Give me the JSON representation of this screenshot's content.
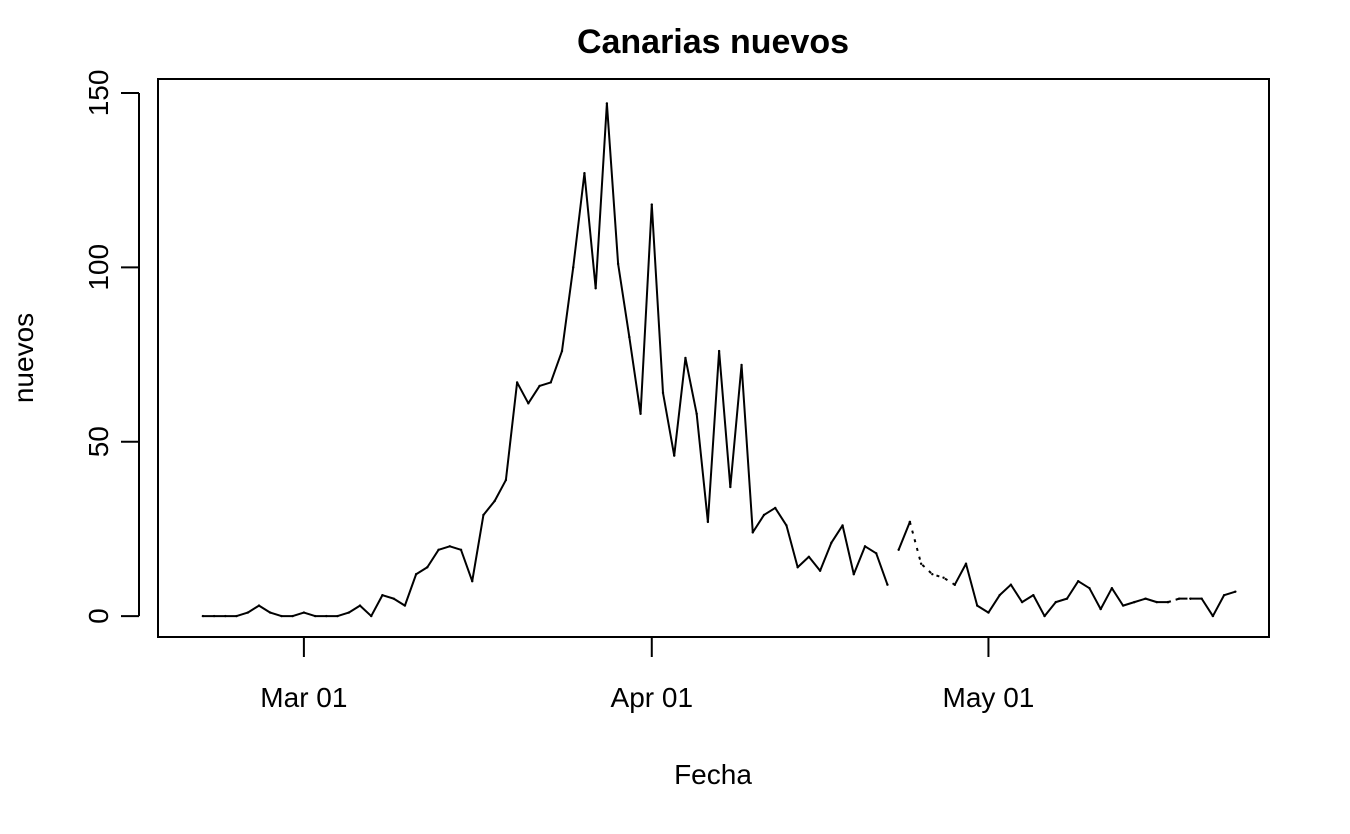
{
  "chart_data": {
    "type": "line",
    "title": "Canarias nuevos",
    "xlabel": "Fecha",
    "ylabel": "nuevos",
    "ylim": [
      -6,
      154
    ],
    "xlim": [
      "2020-02-17",
      "2020-05-26"
    ],
    "yticks": [
      0,
      50,
      100,
      150
    ],
    "xticks": [
      {
        "date": "2020-03-01",
        "label": "Mar 01"
      },
      {
        "date": "2020-04-01",
        "label": "Apr 01"
      },
      {
        "date": "2020-05-01",
        "label": "May 01"
      }
    ],
    "grid": false,
    "series": [
      {
        "style": "solid",
        "x": [
          "2020-02-21",
          "2020-02-22",
          "2020-02-23",
          "2020-02-24",
          "2020-02-25",
          "2020-02-26",
          "2020-02-27",
          "2020-02-28",
          "2020-02-29",
          "2020-03-01",
          "2020-03-02",
          "2020-03-03",
          "2020-03-04",
          "2020-03-05",
          "2020-03-06",
          "2020-03-07",
          "2020-03-08",
          "2020-03-09",
          "2020-03-10",
          "2020-03-11",
          "2020-03-12",
          "2020-03-13",
          "2020-03-14",
          "2020-03-15",
          "2020-03-16",
          "2020-03-17",
          "2020-03-18",
          "2020-03-19",
          "2020-03-20",
          "2020-03-21",
          "2020-03-22",
          "2020-03-23",
          "2020-03-24",
          "2020-03-25",
          "2020-03-26",
          "2020-03-27",
          "2020-03-28",
          "2020-03-29",
          "2020-03-30",
          "2020-03-31",
          "2020-04-01",
          "2020-04-02",
          "2020-04-03",
          "2020-04-04",
          "2020-04-05",
          "2020-04-06",
          "2020-04-07",
          "2020-04-08",
          "2020-04-09",
          "2020-04-10",
          "2020-04-11",
          "2020-04-12",
          "2020-04-13",
          "2020-04-14",
          "2020-04-15",
          "2020-04-16",
          "2020-04-17",
          "2020-04-18",
          "2020-04-19",
          "2020-04-20",
          "2020-04-21",
          "2020-04-22"
        ],
        "y": [
          0,
          0,
          0,
          0,
          1,
          3,
          1,
          0,
          0,
          1,
          0,
          0,
          0,
          1,
          3,
          0,
          6,
          5,
          3,
          12,
          14,
          19,
          20,
          19,
          10,
          29,
          33,
          39,
          67,
          61,
          66,
          67,
          76,
          100,
          127,
          94,
          147,
          101,
          80,
          58,
          118,
          64,
          46,
          74,
          58,
          27,
          76,
          37,
          72,
          24,
          29,
          31,
          26,
          14,
          17,
          13,
          21,
          26,
          12,
          20,
          18,
          9
        ]
      },
      {
        "style": "solid",
        "x": [
          "2020-04-23",
          "2020-04-24"
        ],
        "y": [
          19,
          27
        ]
      },
      {
        "style": "dotted",
        "x": [
          "2020-04-24",
          "2020-04-25",
          "2020-04-26",
          "2020-04-27",
          "2020-04-28"
        ],
        "y": [
          27,
          15,
          12,
          11,
          9
        ]
      },
      {
        "style": "solid",
        "x": [
          "2020-04-28",
          "2020-04-29",
          "2020-04-30",
          "2020-05-01",
          "2020-05-02",
          "2020-05-03",
          "2020-05-04",
          "2020-05-05",
          "2020-05-06",
          "2020-05-07",
          "2020-05-08",
          "2020-05-09",
          "2020-05-10",
          "2020-05-11",
          "2020-05-12",
          "2020-05-13",
          "2020-05-14",
          "2020-05-15",
          "2020-05-16",
          "2020-05-17"
        ],
        "y": [
          9,
          15,
          3,
          1,
          6,
          9,
          4,
          6,
          0,
          4,
          5,
          10,
          8,
          2,
          8,
          3,
          4,
          5,
          4,
          4
        ]
      },
      {
        "style": "dashdot",
        "x": [
          "2020-05-17",
          "2020-05-18",
          "2020-05-19"
        ],
        "y": [
          4,
          5,
          5
        ]
      },
      {
        "style": "solid",
        "x": [
          "2020-05-19",
          "2020-05-20",
          "2020-05-21",
          "2020-05-22",
          "2020-05-23"
        ],
        "y": [
          5,
          5,
          0,
          6,
          7
        ]
      }
    ]
  }
}
